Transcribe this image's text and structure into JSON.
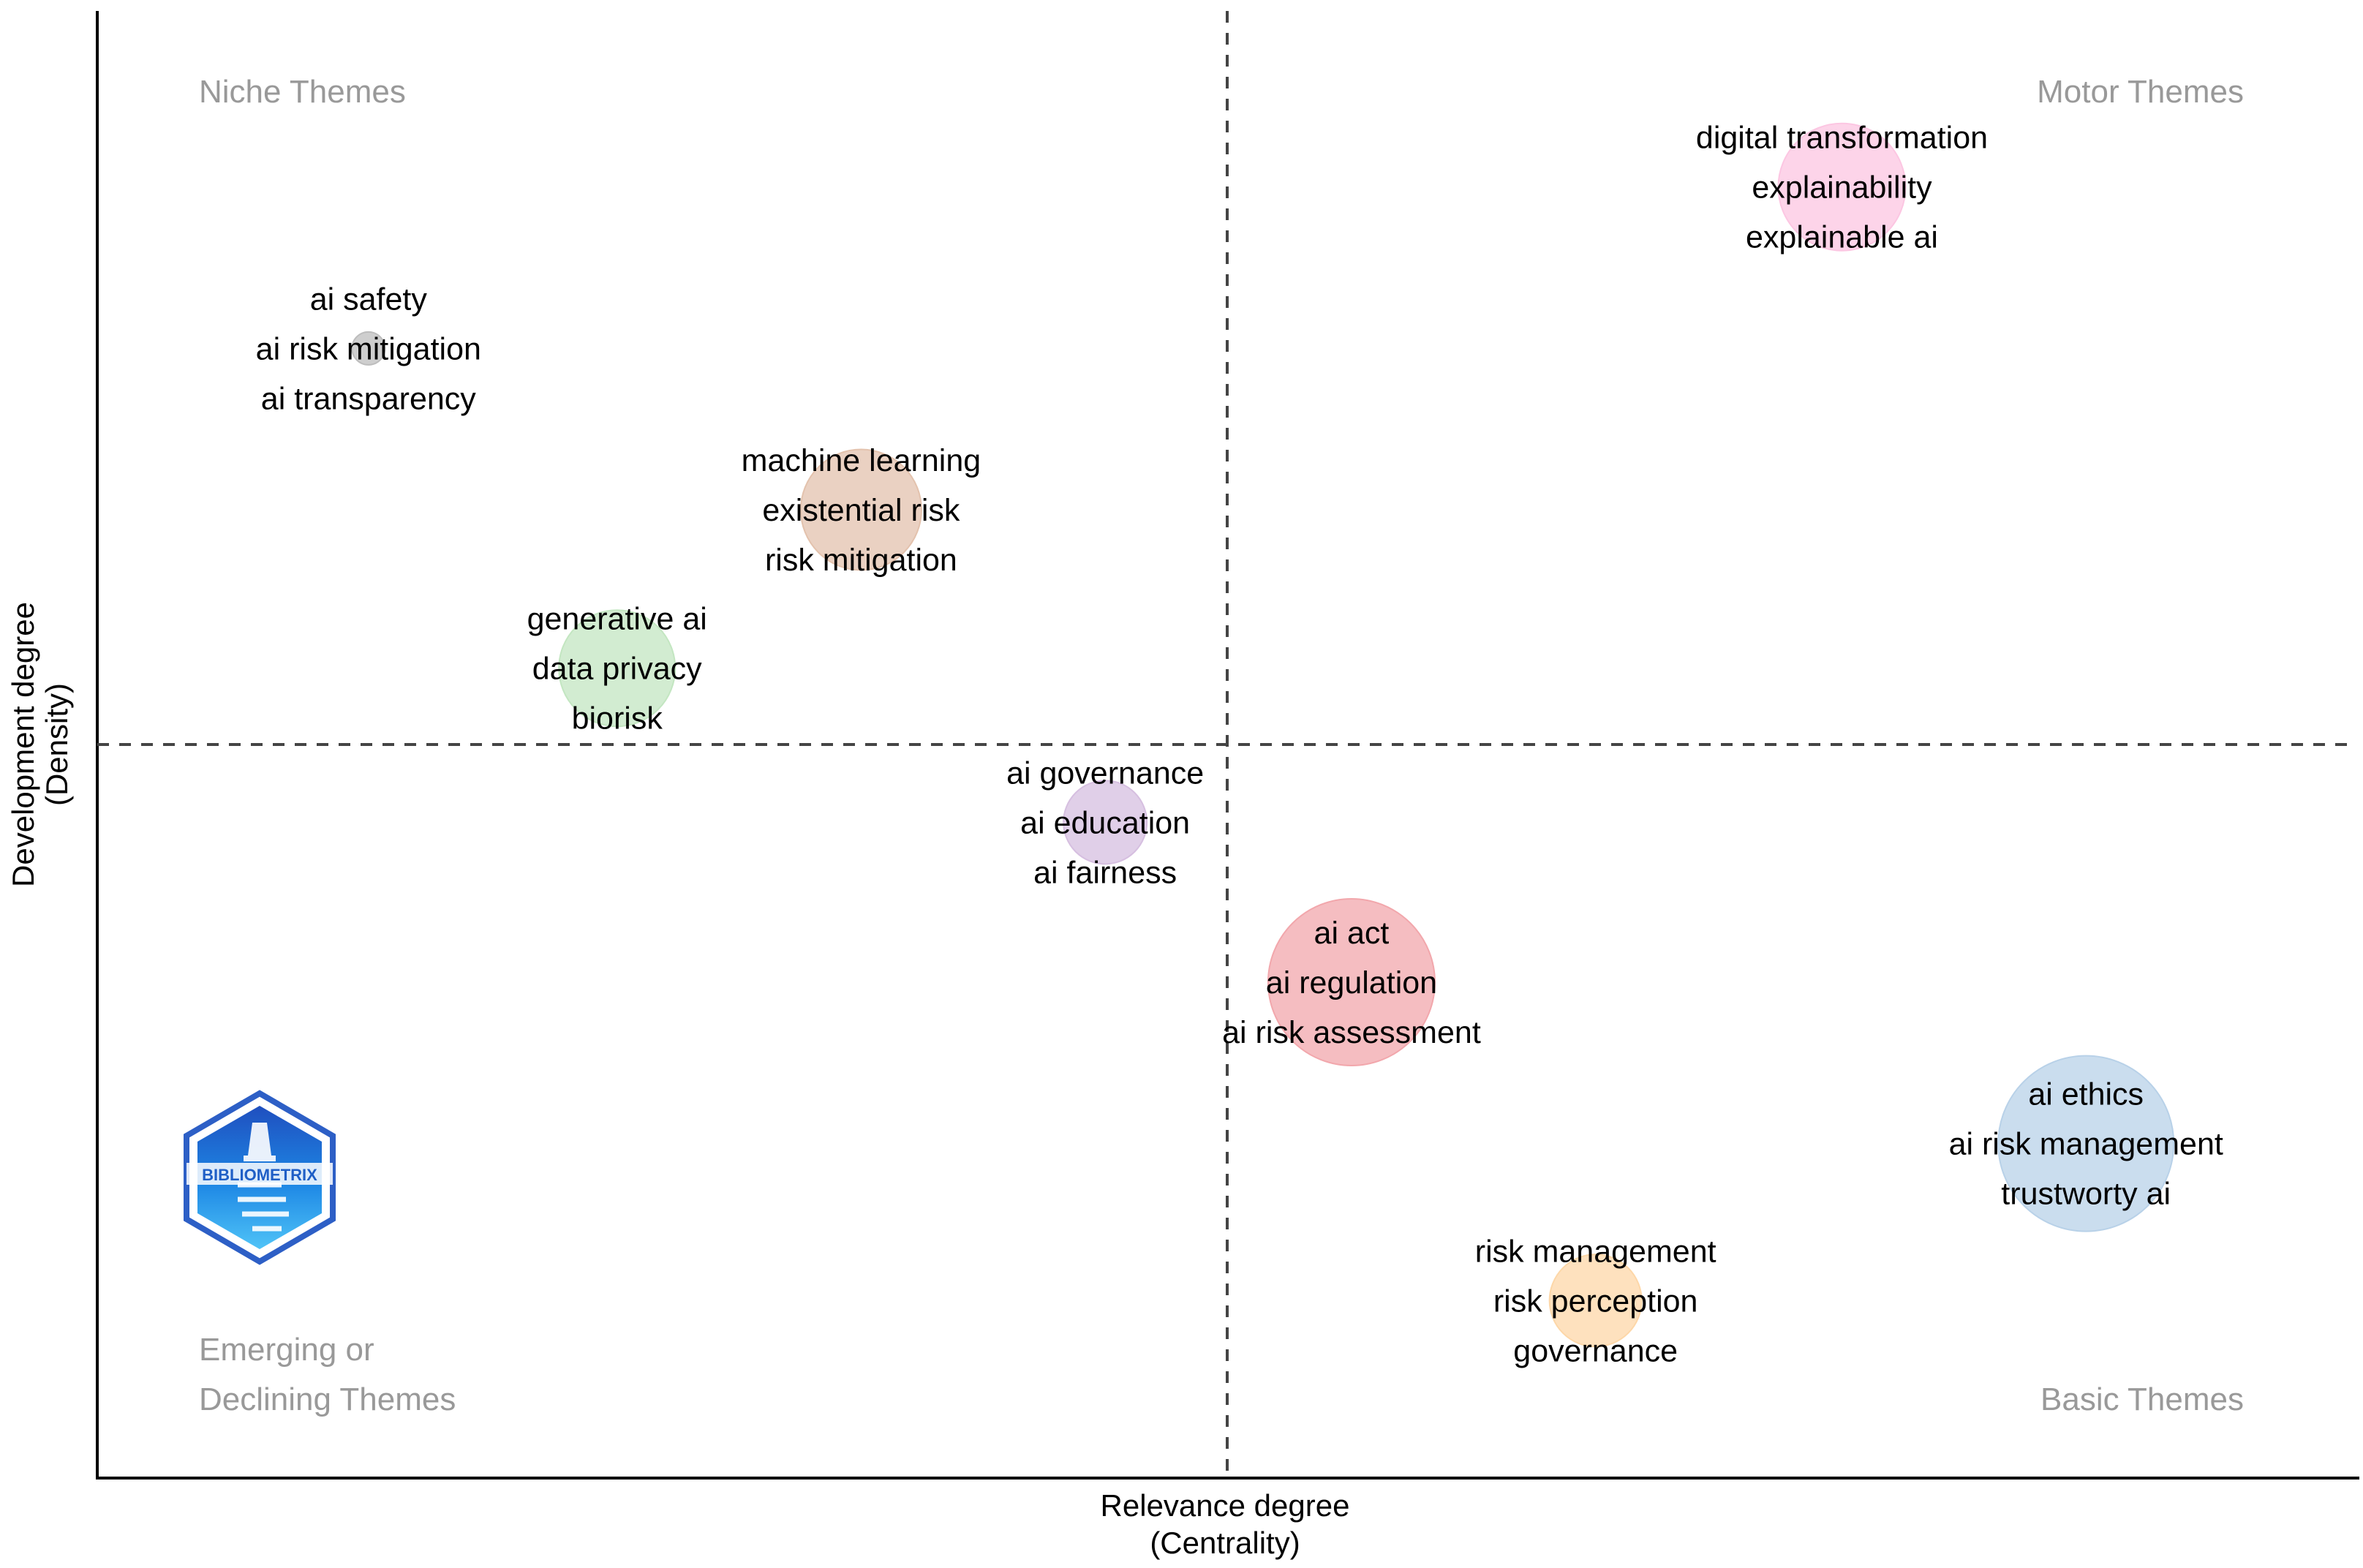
{
  "chart_data": {
    "type": "scatter",
    "title": "",
    "xlabel_lines": [
      "Relevance degree",
      "(Centrality)"
    ],
    "ylabel_lines": [
      "Development degree",
      "(Density)"
    ],
    "xlim": [
      0,
      100
    ],
    "ylim": [
      0,
      100
    ],
    "reference_lines": {
      "x": 50,
      "y": 50
    },
    "quadrants": {
      "top_left": [
        "Niche Themes"
      ],
      "top_right": [
        "Motor Themes"
      ],
      "bottom_left": [
        "Emerging or",
        "Declining Themes"
      ],
      "bottom_right": [
        "Basic Themes"
      ]
    },
    "logo_text": "BIBLIOMETRIX",
    "clusters": [
      {
        "id": "ai-safety",
        "x": 12.0,
        "y": 77.0,
        "size": 1.5,
        "color": "#bdbdbd",
        "labels": [
          "ai safety",
          "ai risk mitigation",
          "ai transparency"
        ]
      },
      {
        "id": "machine-learning",
        "x": 33.8,
        "y": 66.0,
        "size": 5.5,
        "color": "#e3c2ad",
        "labels": [
          "machine learning",
          "existential risk",
          "risk mitigation"
        ]
      },
      {
        "id": "generative-ai",
        "x": 23.0,
        "y": 55.2,
        "size": 5.3,
        "color": "#c3e6c1",
        "labels": [
          "generative ai",
          "data privacy",
          "biorisk"
        ]
      },
      {
        "id": "digital-transformation",
        "x": 77.2,
        "y": 88.0,
        "size": 5.8,
        "color": "#fcc6e2",
        "labels": [
          "digital transformation",
          "explainability",
          "explainable ai"
        ]
      },
      {
        "id": "ai-governance",
        "x": 44.6,
        "y": 44.7,
        "size": 3.8,
        "color": "#d6bfe0",
        "labels": [
          "ai governance",
          "ai education",
          "ai fairness"
        ]
      },
      {
        "id": "ai-act",
        "x": 55.5,
        "y": 33.8,
        "size": 7.6,
        "color": "#f2a7ac",
        "labels": [
          "ai act",
          "ai regulation",
          "ai risk assessment"
        ]
      },
      {
        "id": "ai-ethics",
        "x": 88.0,
        "y": 22.8,
        "size": 8.0,
        "color": "#b8d1e8",
        "labels": [
          "ai ethics",
          "ai risk management",
          "trustworty ai"
        ]
      },
      {
        "id": "risk-management",
        "x": 66.3,
        "y": 12.1,
        "size": 4.2,
        "color": "#fdd7a8",
        "labels": [
          "risk management",
          "risk perception",
          "governance"
        ]
      }
    ]
  }
}
